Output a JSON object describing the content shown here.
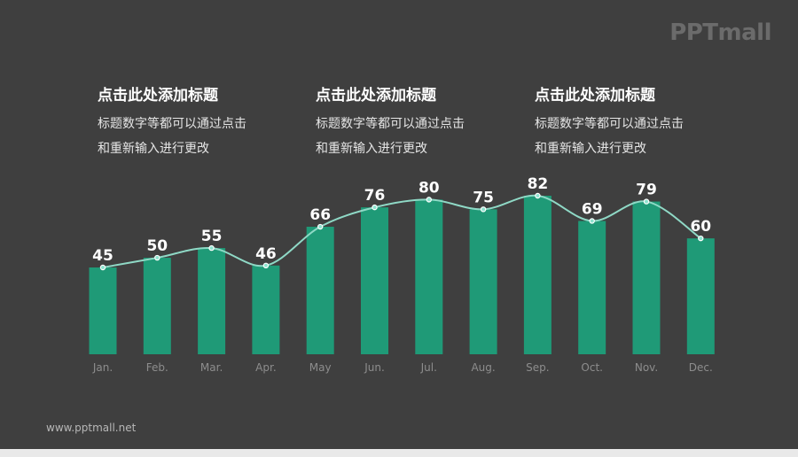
{
  "brand": {
    "logo": "PPTmall",
    "footer": "www.pptmall.net"
  },
  "text_blocks": [
    {
      "title": "点击此处添加标题",
      "lines": [
        "标题数字等都可以通过点击",
        "和重新输入进行更改"
      ]
    },
    {
      "title": "点击此处添加标题",
      "lines": [
        "标题数字等都可以通过点击",
        "和重新输入进行更改"
      ]
    },
    {
      "title": "点击此处添加标题",
      "lines": [
        "标题数字等都可以通过点击",
        "和重新输入进行更改"
      ]
    }
  ],
  "colors": {
    "background": "#3f3f3f",
    "bar": "#1f9a77",
    "trend_line": "#8fd9c6"
  },
  "chart_data": {
    "type": "bar",
    "categories": [
      "Jan.",
      "Feb.",
      "Mar.",
      "Apr.",
      "May",
      "Jun.",
      "Jul.",
      "Aug.",
      "Sep.",
      "Oct.",
      "Nov.",
      "Dec."
    ],
    "values": [
      45,
      50,
      55,
      46,
      66,
      76,
      80,
      75,
      82,
      69,
      79,
      60
    ],
    "overlay": "smooth line through bar tops with point markers",
    "data_labels": true,
    "grid": false,
    "legend": "none"
  }
}
